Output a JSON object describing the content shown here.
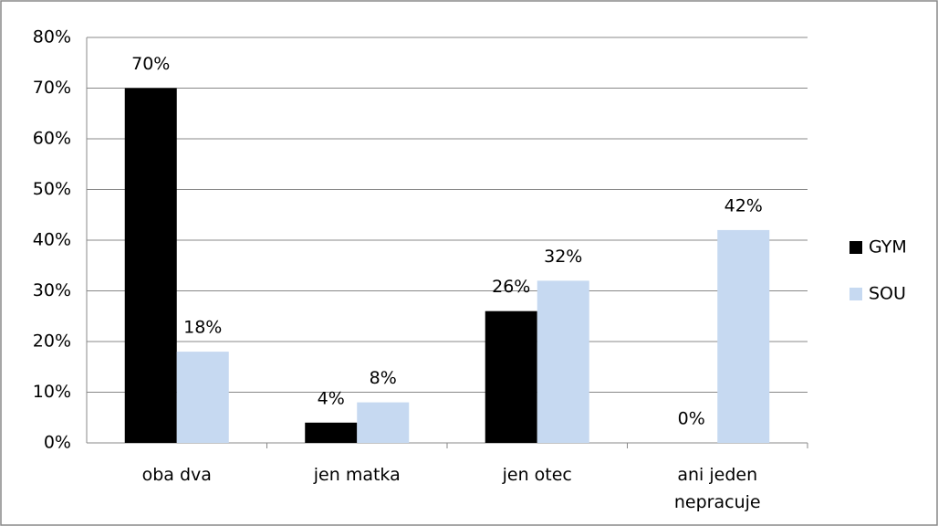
{
  "chart_data": {
    "type": "bar",
    "categories": [
      "oba dva",
      "jen matka",
      "jen otec",
      "ani jeden nepracuje"
    ],
    "series": [
      {
        "name": "GYM",
        "color": "#000000",
        "values": [
          70,
          4,
          26,
          0
        ],
        "value_labels": [
          "70%",
          "4%",
          "26%",
          "0%"
        ]
      },
      {
        "name": "SOU",
        "color": "#c6d9f1",
        "values": [
          18,
          8,
          32,
          42
        ],
        "value_labels": [
          "18%",
          "8%",
          "32%",
          "42%"
        ]
      }
    ],
    "ylim": [
      0,
      80
    ],
    "yticks": [
      {
        "value": 0,
        "label": "0%"
      },
      {
        "value": 10,
        "label": "10%"
      },
      {
        "value": 20,
        "label": "20%"
      },
      {
        "value": 30,
        "label": "30%"
      },
      {
        "value": 40,
        "label": "40%"
      },
      {
        "value": 50,
        "label": "50%"
      },
      {
        "value": 60,
        "label": "60%"
      },
      {
        "value": 70,
        "label": "70%"
      },
      {
        "value": 80,
        "label": "80%"
      }
    ],
    "grid": true,
    "legend": "right"
  }
}
